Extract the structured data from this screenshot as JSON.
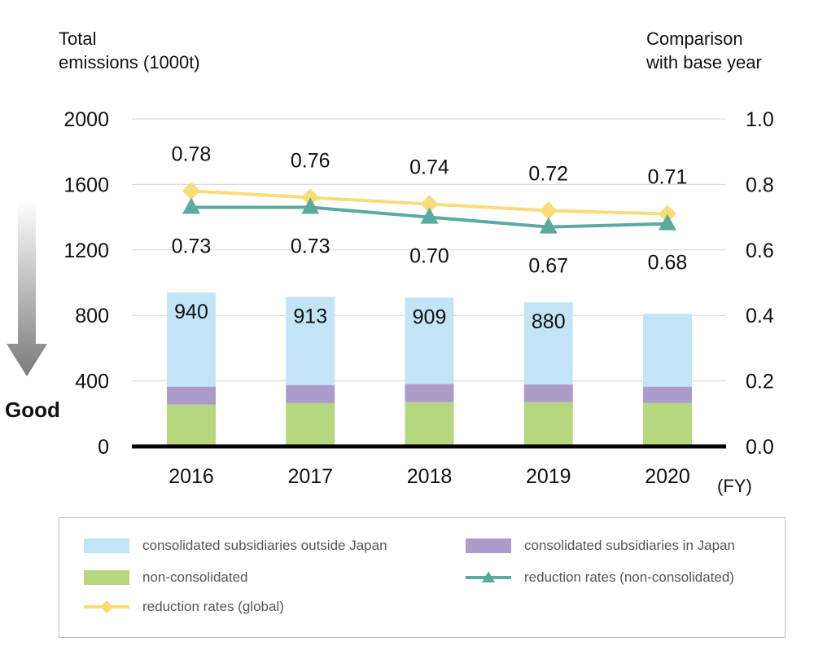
{
  "chart_data": {
    "type": "bar+line",
    "categories": [
      "2016",
      "2017",
      "2018",
      "2019",
      "2020"
    ],
    "x_unit": "(FY)",
    "y_left": {
      "title_line1": "Total",
      "title_line2": "emissions (1000t)",
      "min": 0,
      "max": 2000,
      "ticks": [
        "0",
        "400",
        "800",
        "1200",
        "1600",
        "2000"
      ]
    },
    "y_right": {
      "title_line1": "Comparison",
      "title_line2": "with base year",
      "min": 0.0,
      "max": 1.0,
      "ticks": [
        "0.0",
        "0.2",
        "0.4",
        "0.6",
        "0.8",
        "1.0"
      ]
    },
    "stacked_bars": [
      {
        "name": "non-consolidated",
        "color": "#b7d680",
        "values": [
          255,
          265,
          270,
          270,
          265
        ]
      },
      {
        "name": "consolidated subsidiaries in Japan",
        "color": "#ab9cc9",
        "values": [
          110,
          110,
          112,
          108,
          100
        ]
      },
      {
        "name": "consolidated subsidiaries outside Japan",
        "color": "#c3e4f7",
        "values": [
          575,
          538,
          527,
          502,
          445
        ]
      }
    ],
    "bar_totals": [
      940,
      913,
      909,
      880,
      810
    ],
    "bar_total_labels": [
      "940",
      "913",
      "909",
      "880",
      ""
    ],
    "lines": [
      {
        "name": "reduction rates (global)",
        "color": "#f7dc78",
        "marker": "diamond",
        "values": [
          0.78,
          0.76,
          0.74,
          0.72,
          0.71
        ],
        "labels": [
          "0.78",
          "0.76",
          "0.74",
          "0.72",
          "0.71"
        ]
      },
      {
        "name": "reduction rates (non-consolidated)",
        "color": "#5aab9e",
        "marker": "triangle",
        "values": [
          0.73,
          0.73,
          0.7,
          0.67,
          0.68
        ],
        "labels": [
          "0.73",
          "0.73",
          "0.70",
          "0.67",
          "0.68"
        ]
      }
    ],
    "annotation": "Good",
    "legend_position": "bottom",
    "grid": true
  },
  "legend": [
    {
      "label": "consolidated subsidiaries outside Japan",
      "kind": "box",
      "color": "#c3e4f7"
    },
    {
      "label": "consolidated subsidiaries in Japan",
      "kind": "box",
      "color": "#ab9cc9"
    },
    {
      "label": "non-consolidated",
      "kind": "box",
      "color": "#b7d680"
    },
    {
      "label": "reduction rates (non-consolidated)",
      "kind": "triangle",
      "color": "#5aab9e"
    },
    {
      "label": "reduction rates (global)",
      "kind": "diamond",
      "color": "#f7dc78"
    }
  ]
}
